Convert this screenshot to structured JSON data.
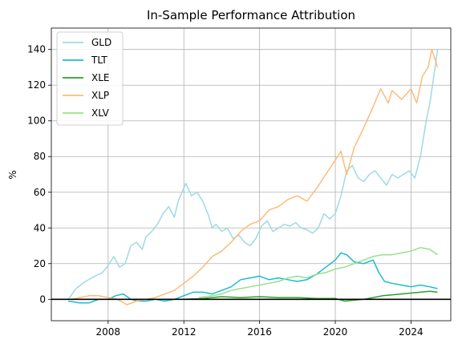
{
  "chart_data": {
    "type": "line",
    "title": "In-Sample Performance Attribution",
    "xlabel": "",
    "ylabel": "%",
    "xlim": [
      2005.0,
      2026.1
    ],
    "ylim": [
      -12,
      152
    ],
    "xticks": [
      2008,
      2012,
      2016,
      2020,
      2024
    ],
    "yticks": [
      0,
      20,
      40,
      60,
      80,
      100,
      120,
      140
    ],
    "grid": true,
    "legend_position": "upper-left",
    "zero_line": 0,
    "series": [
      {
        "name": "GLD",
        "color": "#9edae5",
        "x": [
          2005.9,
          2006.3,
          2006.8,
          2007.3,
          2007.7,
          2008.0,
          2008.3,
          2008.6,
          2008.9,
          2009.2,
          2009.5,
          2009.8,
          2010.0,
          2010.3,
          2010.6,
          2010.9,
          2011.2,
          2011.5,
          2011.7,
          2011.9,
          2012.1,
          2012.4,
          2012.7,
          2013.0,
          2013.3,
          2013.5,
          2013.7,
          2014.0,
          2014.3,
          2014.6,
          2014.9,
          2015.2,
          2015.5,
          2015.8,
          2016.1,
          2016.4,
          2016.7,
          2017.0,
          2017.3,
          2017.6,
          2017.9,
          2018.2,
          2018.5,
          2018.8,
          2019.1,
          2019.4,
          2019.7,
          2020.0,
          2020.3,
          2020.6,
          2020.9,
          2021.2,
          2021.5,
          2021.8,
          2022.1,
          2022.4,
          2022.7,
          2023.0,
          2023.3,
          2023.6,
          2023.9,
          2024.2,
          2024.5,
          2024.8,
          2025.0,
          2025.2,
          2025.4
        ],
        "values": [
          0,
          6,
          10,
          13,
          15,
          19,
          24,
          18,
          20,
          30,
          32,
          28,
          35,
          38,
          42,
          48,
          52,
          46,
          55,
          60,
          65,
          58,
          60,
          55,
          47,
          40,
          42,
          38,
          40,
          34,
          36,
          32,
          30,
          34,
          41,
          44,
          38,
          40,
          42,
          41,
          43,
          40,
          39,
          37,
          40,
          48,
          45,
          48,
          58,
          72,
          75,
          68,
          66,
          70,
          72,
          68,
          64,
          70,
          68,
          70,
          72,
          68,
          80,
          100,
          110,
          125,
          140
        ]
      },
      {
        "name": "TLT",
        "color": "#17becf",
        "x": [
          2005.9,
          2006.5,
          2007.0,
          2007.5,
          2008.0,
          2008.4,
          2008.8,
          2009.2,
          2009.6,
          2010.0,
          2010.5,
          2011.0,
          2011.5,
          2012.0,
          2012.5,
          2013.0,
          2013.5,
          2014.0,
          2014.5,
          2015.0,
          2015.5,
          2016.0,
          2016.5,
          2017.0,
          2017.5,
          2018.0,
          2018.5,
          2019.0,
          2019.5,
          2020.0,
          2020.3,
          2020.6,
          2021.0,
          2021.5,
          2022.0,
          2022.3,
          2022.6,
          2023.0,
          2023.5,
          2024.0,
          2024.5,
          2025.0,
          2025.4
        ],
        "values": [
          -1,
          -2,
          -2,
          0,
          0,
          2,
          3,
          0,
          -1,
          -1,
          0,
          -1,
          0,
          2,
          4,
          4,
          3,
          5,
          7,
          11,
          12,
          13,
          11,
          12,
          11,
          10,
          11,
          14,
          18,
          22,
          26,
          25,
          21,
          20,
          22,
          15,
          10,
          9,
          8,
          7,
          8,
          7,
          6
        ]
      },
      {
        "name": "XLE",
        "color": "#2ca02c",
        "x": [
          2005.9,
          2007.0,
          2008.0,
          2009.0,
          2010.0,
          2011.0,
          2012.0,
          2013.0,
          2014.0,
          2015.0,
          2016.0,
          2017.0,
          2018.0,
          2019.0,
          2020.0,
          2020.5,
          2021.0,
          2021.5,
          2022.0,
          2022.5,
          2023.0,
          2023.5,
          2024.0,
          2024.5,
          2025.0,
          2025.4
        ],
        "values": [
          0,
          0,
          0,
          0,
          0,
          0,
          0,
          0.5,
          1.5,
          1,
          1.5,
          1,
          1,
          0.5,
          0.5,
          -1,
          -0.5,
          0,
          1,
          2,
          2.5,
          3,
          3.5,
          4,
          4.5,
          4
        ]
      },
      {
        "name": "XLP",
        "color": "#ffbb78",
        "x": [
          2006.0,
          2006.5,
          2007.0,
          2007.5,
          2008.0,
          2008.5,
          2009.0,
          2009.5,
          2010.0,
          2010.5,
          2011.0,
          2011.5,
          2012.0,
          2012.5,
          2013.0,
          2013.5,
          2014.0,
          2014.5,
          2015.0,
          2015.5,
          2016.0,
          2016.5,
          2017.0,
          2017.5,
          2018.0,
          2018.5,
          2019.0,
          2019.5,
          2020.0,
          2020.3,
          2020.6,
          2021.0,
          2021.5,
          2022.0,
          2022.4,
          2022.8,
          2023.0,
          2023.5,
          2024.0,
          2024.3,
          2024.6,
          2024.9,
          2025.1,
          2025.4
        ],
        "values": [
          0,
          1,
          2,
          2,
          1,
          0,
          -3,
          -1,
          0,
          1,
          3,
          5,
          9,
          13,
          18,
          24,
          27,
          32,
          38,
          42,
          44,
          50,
          52,
          56,
          58,
          55,
          62,
          70,
          78,
          83,
          70,
          85,
          96,
          108,
          118,
          110,
          117,
          112,
          118,
          110,
          125,
          130,
          140,
          130
        ]
      },
      {
        "name": "XLV",
        "color": "#98df8a",
        "x": [
          2012.8,
          2013.5,
          2014.0,
          2014.5,
          2015.0,
          2015.5,
          2016.0,
          2016.5,
          2017.0,
          2017.5,
          2018.0,
          2018.5,
          2019.0,
          2019.5,
          2020.0,
          2020.5,
          2021.0,
          2021.5,
          2022.0,
          2022.5,
          2023.0,
          2023.5,
          2024.0,
          2024.5,
          2025.0,
          2025.4
        ],
        "values": [
          1,
          2,
          3,
          5,
          6,
          7,
          8,
          9,
          10,
          12,
          13,
          12,
          14,
          15,
          17,
          18,
          20,
          22,
          24,
          25,
          25,
          26,
          27,
          29,
          28,
          25
        ]
      }
    ]
  }
}
